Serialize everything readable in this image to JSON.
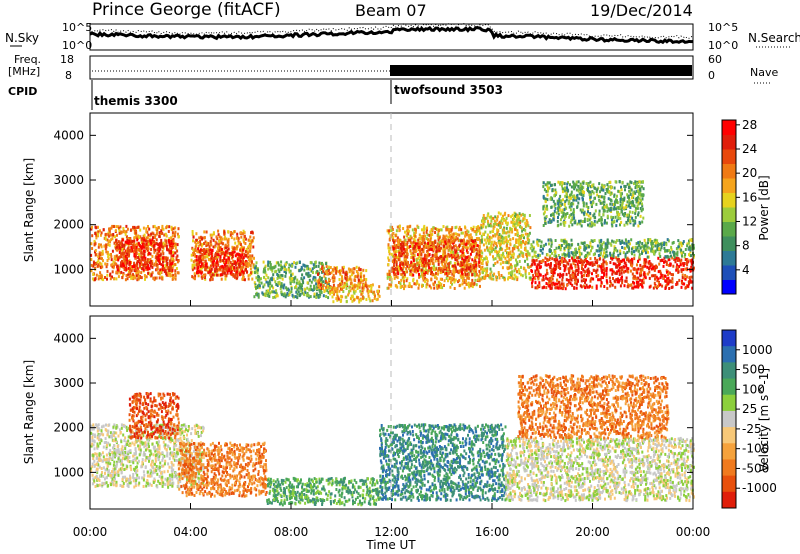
{
  "header": {
    "title": "Prince George (fitACF)",
    "beam": "Beam 07",
    "date": "19/Dec/2014"
  },
  "top_panels": {
    "nsky_label": "N.Sky",
    "nsearch_label": "N.Search",
    "n_ticks_left": [
      "10^5",
      "10^0"
    ],
    "n_ticks_right": [
      "10^5",
      "10^0"
    ],
    "freq_label_1": "Freq.",
    "freq_label_2": "[MHz]",
    "freq_ticks": [
      "18",
      "8"
    ],
    "nave_label": "Nave",
    "nave_ticks": [
      "60",
      "0"
    ],
    "cpid_label": "CPID",
    "cpid_segments": [
      {
        "name": "themis 3300",
        "start_hour": 0,
        "end_hour": 12
      },
      {
        "name": "twofsound 3503",
        "start_hour": 12,
        "end_hour": 24
      }
    ]
  },
  "chart_data": [
    {
      "type": "heatmap",
      "xlabel": "",
      "ylabel": "Slant Range [km]",
      "x_ticks": [
        "00:00",
        "04:00",
        "08:00",
        "12:00",
        "16:00",
        "20:00",
        "00:00"
      ],
      "xlim_hours": [
        0,
        24
      ],
      "ylim": [
        180,
        4500
      ],
      "y_ticks": [
        1000,
        2000,
        3000,
        4000
      ],
      "colorbar": {
        "label": "Power [dB]",
        "tick_labels": [
          "4",
          "8",
          "12",
          "16",
          "20",
          "24",
          "28"
        ],
        "range": [
          0,
          30
        ],
        "colors": [
          "#0000ff",
          "#1e4fb8",
          "#2d7a96",
          "#3f8f5e",
          "#5aa94a",
          "#9ccc3c",
          "#e6d21e",
          "#f5a41c",
          "#f07a14",
          "#e8480c",
          "#e01e0a",
          "#ff0000"
        ]
      },
      "regions": [
        {
          "t0": 0.0,
          "t1": 3.5,
          "r0": 800,
          "r1": 2000,
          "value": 22
        },
        {
          "t0": 1.0,
          "t1": 3.3,
          "r0": 1000,
          "r1": 1700,
          "value": 26
        },
        {
          "t0": 4.0,
          "t1": 6.5,
          "r0": 800,
          "r1": 1900,
          "value": 22
        },
        {
          "t0": 4.2,
          "t1": 6.2,
          "r0": 900,
          "r1": 1500,
          "value": 26
        },
        {
          "t0": 6.5,
          "t1": 9.5,
          "r0": 400,
          "r1": 1200,
          "value": 12
        },
        {
          "t0": 9.0,
          "t1": 11.0,
          "r0": 600,
          "r1": 1100,
          "value": 22
        },
        {
          "t0": 9.5,
          "t1": 11.5,
          "r0": 300,
          "r1": 700,
          "value": 18
        },
        {
          "t0": 11.8,
          "t1": 15.5,
          "r0": 600,
          "r1": 2000,
          "value": 20
        },
        {
          "t0": 12.0,
          "t1": 15.5,
          "r0": 900,
          "r1": 1700,
          "value": 24
        },
        {
          "t0": 15.5,
          "t1": 17.5,
          "r0": 800,
          "r1": 2300,
          "value": 16
        },
        {
          "t0": 17.5,
          "t1": 24.0,
          "r0": 600,
          "r1": 1300,
          "value": 27
        },
        {
          "t0": 17.5,
          "t1": 24.0,
          "r0": 1300,
          "r1": 1700,
          "value": 10
        },
        {
          "t0": 18.0,
          "t1": 22.0,
          "r0": 2000,
          "r1": 3000,
          "value": 12
        }
      ]
    },
    {
      "type": "heatmap",
      "xlabel": "Time UT",
      "ylabel": "Slant Range [km]",
      "x_ticks": [
        "00:00",
        "04:00",
        "08:00",
        "12:00",
        "16:00",
        "20:00",
        "00:00"
      ],
      "xlim_hours": [
        0,
        24
      ],
      "ylim": [
        180,
        4500
      ],
      "y_ticks": [
        1000,
        2000,
        3000,
        4000
      ],
      "colorbar": {
        "label": "Velocity [m s^-1]",
        "tick_labels": [
          "1000",
          "500",
          "100",
          "25",
          "-25",
          "-100",
          "-500",
          "-1000"
        ],
        "colors": [
          "#1e3cc8",
          "#2b6fb0",
          "#3d8f78",
          "#4aa858",
          "#8ccf3c",
          "#c8c8c8",
          "#f7c878",
          "#f5a23c",
          "#f07a1e",
          "#e8500c",
          "#e01e0a"
        ]
      },
      "regions": [
        {
          "t0": 0.0,
          "t1": 4.5,
          "r0": 700,
          "r1": 2100,
          "value": 0
        },
        {
          "t0": 1.5,
          "t1": 3.5,
          "r0": 1800,
          "r1": 2800,
          "value": -500
        },
        {
          "t0": 3.5,
          "t1": 7.0,
          "r0": 500,
          "r1": 1700,
          "value": -300
        },
        {
          "t0": 7.0,
          "t1": 11.5,
          "r0": 300,
          "r1": 900,
          "value": 50
        },
        {
          "t0": 11.5,
          "t1": 16.5,
          "r0": 400,
          "r1": 2100,
          "value": 150
        },
        {
          "t0": 16.5,
          "t1": 24.0,
          "r0": 400,
          "r1": 1800,
          "value": 0
        },
        {
          "t0": 17.0,
          "t1": 23.0,
          "r0": 1800,
          "r1": 3200,
          "value": -300
        }
      ]
    }
  ]
}
